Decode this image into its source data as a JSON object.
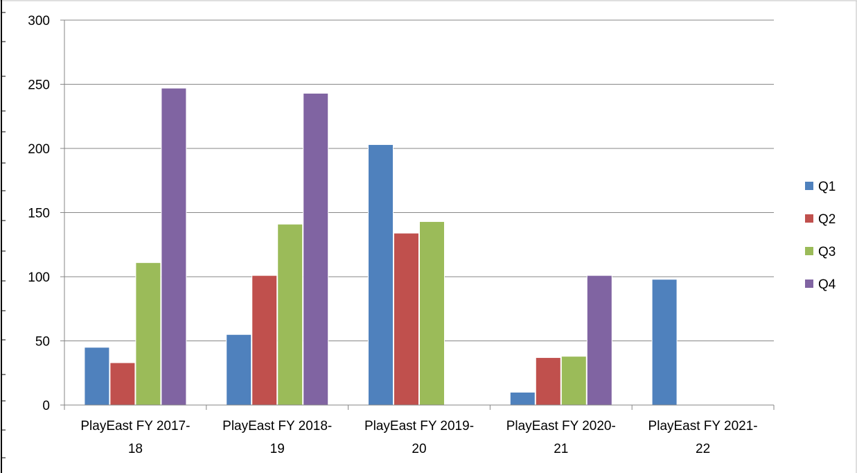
{
  "chart_data": {
    "type": "bar",
    "title": "",
    "xlabel": "",
    "ylabel": "",
    "ylim": [
      0,
      300
    ],
    "yticks": [
      "0",
      "50",
      "100",
      "150",
      "200",
      "250",
      "300"
    ],
    "grid": true,
    "legend_position": "right",
    "categories": [
      [
        "PlayEast FY 2017-",
        "18"
      ],
      [
        "PlayEast FY 2018-",
        "19"
      ],
      [
        "PlayEast FY 2019-",
        "20"
      ],
      [
        "PlayEast FY 2020-",
        "21"
      ],
      [
        "PlayEast FY 2021-",
        "22"
      ]
    ],
    "series": [
      {
        "name": "Q1",
        "color": "#4F81BD",
        "values": [
          45,
          55,
          203,
          10,
          98
        ]
      },
      {
        "name": "Q2",
        "color": "#C0504D",
        "values": [
          33,
          101,
          134,
          37,
          null
        ]
      },
      {
        "name": "Q3",
        "color": "#9BBB59",
        "values": [
          111,
          141,
          143,
          38,
          null
        ]
      },
      {
        "name": "Q4",
        "color": "#8064A2",
        "values": [
          247,
          243,
          null,
          101,
          null
        ]
      }
    ]
  }
}
